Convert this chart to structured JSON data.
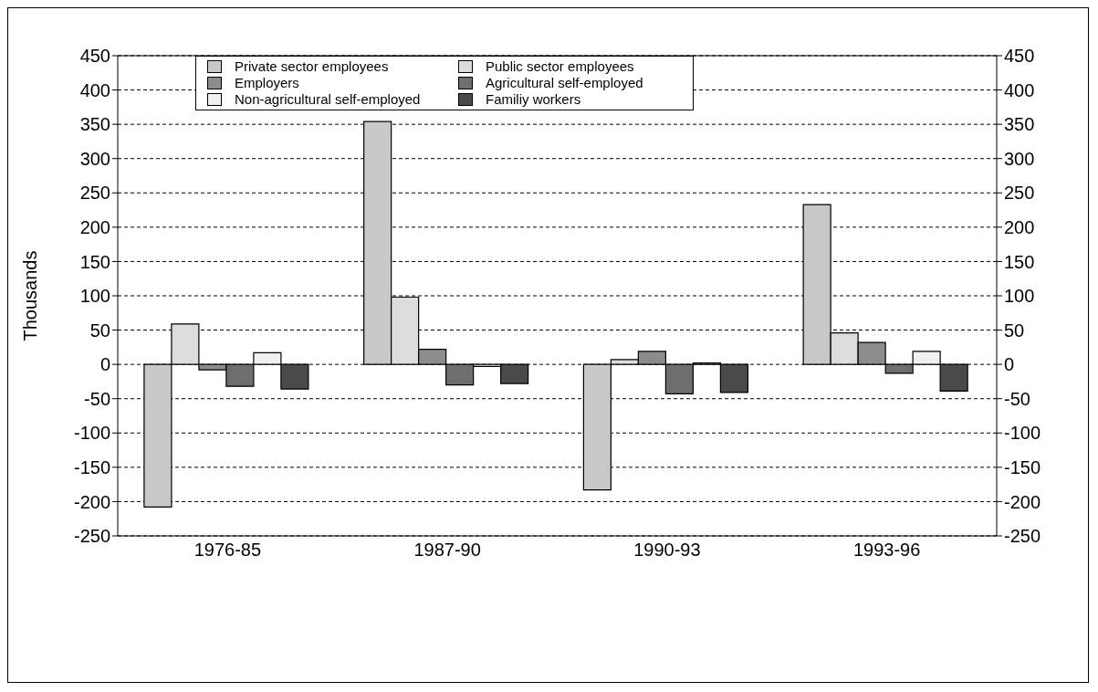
{
  "chart_data": {
    "type": "bar",
    "ylabel": "Thousands",
    "categories": [
      "1976-85",
      "1987-90",
      "1990-93",
      "1993-96"
    ],
    "series": [
      {
        "name": "Private sector employees",
        "color": "#c8c8c8",
        "values": [
          -208,
          354,
          -183,
          233
        ]
      },
      {
        "name": "Public sector employees",
        "color": "#dcdcdc",
        "values": [
          59,
          98,
          7,
          46
        ]
      },
      {
        "name": "Employers",
        "color": "#8c8c8c",
        "values": [
          -8,
          22,
          19,
          32
        ]
      },
      {
        "name": "Agricultural self-employed",
        "color": "#6e6e6e",
        "values": [
          -32,
          -30,
          -43,
          -13
        ]
      },
      {
        "name": "Non-agricultural self-employed",
        "color": "#f0f0f0",
        "values": [
          17,
          -3,
          2,
          19
        ]
      },
      {
        "name": "Familiy workers",
        "color": "#4a4a4a",
        "values": [
          -36,
          -28,
          -41,
          -39
        ]
      }
    ],
    "ylim": [
      -250,
      450
    ],
    "yticks": [
      -250,
      -200,
      -150,
      -100,
      -50,
      0,
      50,
      100,
      150,
      200,
      250,
      300,
      350,
      400,
      450
    ],
    "y2lim": [
      -250,
      450
    ],
    "y2ticks": [
      -250,
      -200,
      -150,
      -100,
      -50,
      0,
      50,
      100,
      150,
      200,
      250,
      300,
      350,
      400,
      450
    ],
    "grid": "y",
    "legend": "top"
  }
}
